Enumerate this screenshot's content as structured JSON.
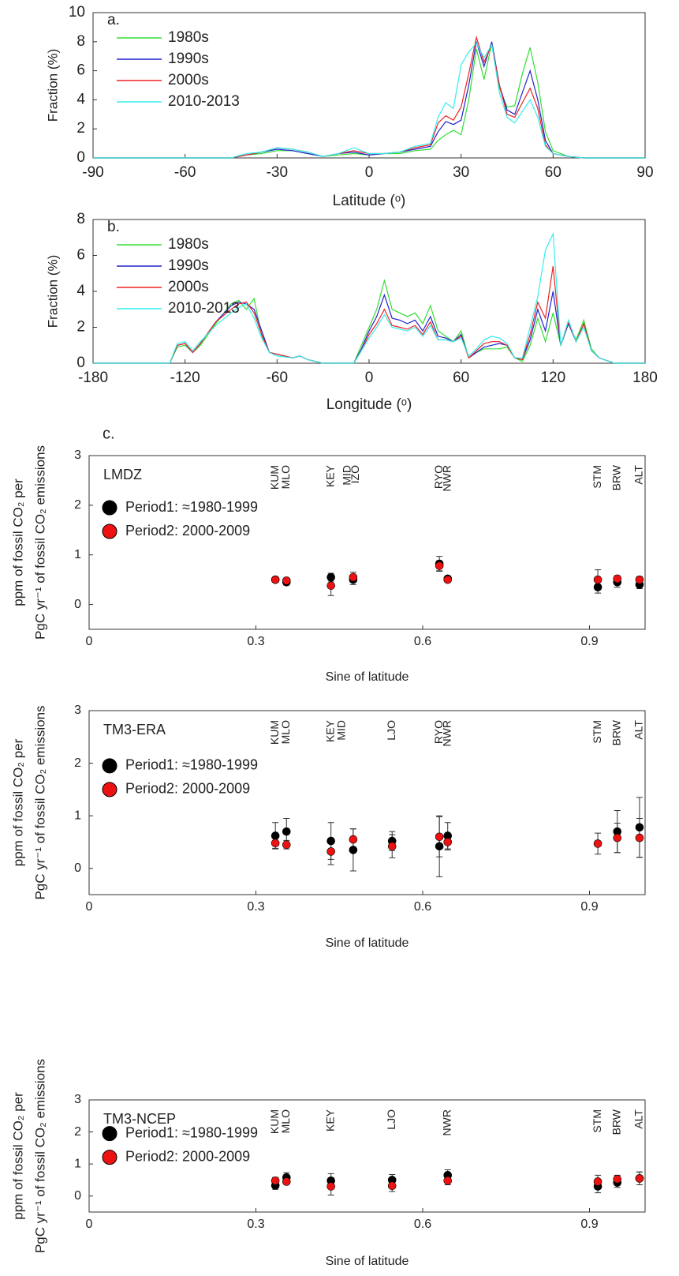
{
  "chart_data": [
    {
      "type": "line",
      "panel_label": "a.",
      "xlabel": "Latitude (ᵒ)",
      "ylabel": "Fraction (%)",
      "xlim": [
        -90,
        90
      ],
      "ylim": [
        0,
        10
      ],
      "xticks": [
        -90,
        -60,
        -30,
        0,
        30,
        60,
        90
      ],
      "yticks": [
        0,
        2,
        4,
        6,
        8,
        10
      ],
      "x": [
        -90,
        -45,
        -40,
        -35,
        -30,
        -25,
        -20,
        -15,
        -10,
        -5,
        0,
        5,
        10,
        15,
        20,
        22.5,
        25,
        27.5,
        30,
        32.5,
        35,
        37.5,
        40,
        42.5,
        45,
        47.5,
        50,
        52.5,
        55,
        57.5,
        60,
        65,
        70,
        90
      ],
      "series": [
        {
          "name": "1980s",
          "color": "#33dd33",
          "values": [
            0,
            0,
            0.2,
            0.3,
            0.5,
            0.5,
            0.3,
            0.1,
            0.2,
            0.3,
            0.2,
            0.3,
            0.3,
            0.5,
            0.6,
            1.2,
            1.6,
            1.9,
            1.6,
            4.0,
            7.5,
            5.4,
            7.9,
            4.8,
            3.5,
            3.6,
            5.8,
            7.6,
            5.2,
            1.8,
            0.5,
            0.1,
            0,
            0
          ]
        },
        {
          "name": "1990s",
          "color": "#2222cc",
          "values": [
            0,
            0,
            0.2,
            0.4,
            0.6,
            0.5,
            0.3,
            0.1,
            0.3,
            0.4,
            0.2,
            0.3,
            0.4,
            0.6,
            0.8,
            1.8,
            2.5,
            2.3,
            2.6,
            5.0,
            8.0,
            6.3,
            8.0,
            5.0,
            3.3,
            3.0,
            4.5,
            6.0,
            4.0,
            1.2,
            0.3,
            0.1,
            0,
            0
          ]
        },
        {
          "name": "2000s",
          "color": "#ee2222",
          "values": [
            0,
            0,
            0.2,
            0.4,
            0.7,
            0.6,
            0.4,
            0.1,
            0.3,
            0.5,
            0.3,
            0.3,
            0.4,
            0.7,
            0.9,
            2.4,
            2.9,
            2.6,
            3.5,
            5.8,
            8.3,
            6.6,
            7.8,
            5.0,
            3.0,
            2.8,
            3.8,
            4.8,
            3.4,
            0.9,
            0.3,
            0.1,
            0,
            0
          ]
        },
        {
          "name": "2010-2013",
          "color": "#33eeee",
          "values": [
            0,
            0,
            0.3,
            0.4,
            0.7,
            0.6,
            0.4,
            0.1,
            0.3,
            0.7,
            0.3,
            0.3,
            0.4,
            0.8,
            1.0,
            2.8,
            3.8,
            3.4,
            6.4,
            7.3,
            7.9,
            6.9,
            7.8,
            4.5,
            2.8,
            2.4,
            3.2,
            4.0,
            2.8,
            0.8,
            0.3,
            0.1,
            0,
            0
          ]
        }
      ]
    },
    {
      "type": "line",
      "panel_label": "b.",
      "xlabel": "Longitude (ᵒ)",
      "ylabel": "Fraction (%)",
      "xlim": [
        -180,
        180
      ],
      "ylim": [
        0,
        8
      ],
      "xticks": [
        -180,
        -120,
        -60,
        0,
        60,
        120,
        180
      ],
      "yticks": [
        0,
        2,
        4,
        6,
        8
      ],
      "x": [
        -180,
        -130,
        -125,
        -120,
        -115,
        -110,
        -100,
        -90,
        -85,
        -80,
        -75,
        -70,
        -65,
        -60,
        -50,
        -45,
        -40,
        -30,
        -10,
        -5,
        0,
        5,
        10,
        15,
        20,
        25,
        30,
        35,
        40,
        45,
        50,
        55,
        60,
        65,
        70,
        75,
        80,
        85,
        90,
        95,
        100,
        105,
        110,
        115,
        120,
        125,
        130,
        135,
        140,
        145,
        150,
        160,
        180
      ],
      "series": [
        {
          "name": "1980s",
          "color": "#33dd33",
          "values": [
            0,
            0,
            0.9,
            1.0,
            0.6,
            1.0,
            2.2,
            3.3,
            3.5,
            3.0,
            3.6,
            1.5,
            0.6,
            0.5,
            0.3,
            0.4,
            0.2,
            0,
            0,
            1.0,
            2.0,
            3.0,
            4.6,
            3.0,
            2.8,
            2.6,
            2.8,
            2.2,
            3.2,
            1.8,
            1.5,
            1.2,
            1.8,
            0.3,
            0.6,
            0.8,
            0.8,
            0.8,
            0.9,
            0.3,
            0.1,
            1.0,
            2.5,
            1.2,
            2.8,
            1.0,
            2.2,
            1.3,
            2.4,
            0.8,
            0.3,
            0,
            0
          ]
        },
        {
          "name": "1990s",
          "color": "#2222cc",
          "values": [
            0,
            0,
            1.0,
            1.1,
            0.6,
            1.1,
            2.3,
            3.2,
            3.4,
            3.3,
            3.0,
            1.8,
            0.6,
            0.5,
            0.3,
            0.4,
            0.2,
            0,
            0,
            0.8,
            1.8,
            2.6,
            3.8,
            2.5,
            2.4,
            2.2,
            2.4,
            1.8,
            2.6,
            1.5,
            1.4,
            1.2,
            1.6,
            0.3,
            0.6,
            0.9,
            1.0,
            1.1,
            1.0,
            0.3,
            0.2,
            1.3,
            3.0,
            1.8,
            4.0,
            1.0,
            2.2,
            1.2,
            2.2,
            0.7,
            0.3,
            0,
            0
          ]
        },
        {
          "name": "2000s",
          "color": "#ee2222",
          "values": [
            0,
            0,
            1.0,
            1.1,
            0.6,
            1.1,
            2.3,
            3.0,
            3.3,
            3.4,
            2.8,
            1.6,
            0.6,
            0.5,
            0.3,
            0.4,
            0.2,
            0,
            0,
            0.7,
            1.6,
            2.2,
            3.0,
            2.1,
            2.0,
            1.9,
            2.1,
            1.6,
            2.3,
            1.3,
            1.3,
            1.2,
            1.5,
            0.3,
            0.7,
            1.1,
            1.2,
            1.2,
            1.0,
            0.3,
            0.2,
            1.6,
            3.4,
            2.5,
            5.4,
            1.0,
            2.3,
            1.2,
            2.2,
            0.7,
            0.3,
            0,
            0
          ]
        },
        {
          "name": "2010-2013",
          "color": "#33eeee",
          "values": [
            0,
            0,
            1.1,
            1.2,
            0.7,
            1.2,
            2.1,
            2.8,
            3.1,
            3.3,
            2.5,
            1.4,
            0.6,
            0.4,
            0.3,
            0.4,
            0.2,
            0,
            0,
            0.7,
            1.4,
            2.0,
            2.7,
            2.0,
            1.9,
            1.8,
            2.0,
            1.5,
            2.1,
            1.3,
            1.3,
            1.2,
            1.4,
            0.4,
            0.8,
            1.3,
            1.5,
            1.4,
            1.1,
            0.3,
            0.3,
            2.0,
            3.7,
            6.3,
            7.2,
            1.0,
            2.4,
            1.2,
            2.0,
            0.7,
            0.3,
            0,
            0
          ]
        }
      ]
    },
    {
      "type": "scatter",
      "panel_label": "c.",
      "model": "LMDZ",
      "xlabel": "Sine of latitude",
      "ylabel": [
        "ppm of fossil CO₂ per",
        "PgC yr⁻¹ of fossil CO₂ emissions"
      ],
      "xlim": [
        0,
        1
      ],
      "ylim": [
        -0.5,
        3
      ],
      "xticks": [
        0,
        0.3,
        0.6,
        0.9
      ],
      "yticks": [
        0,
        1,
        2,
        3
      ],
      "stations": [
        {
          "label": "KUM",
          "x": 0.335
        },
        {
          "label": "MLO",
          "x": 0.355
        },
        {
          "label": "KEY",
          "x": 0.435
        },
        {
          "label": "MID",
          "x": 0.465
        },
        {
          "label": "IZO",
          "x": 0.48
        },
        {
          "label": "RYO",
          "x": 0.63
        },
        {
          "label": "NWR",
          "x": 0.645
        },
        {
          "label": "STM",
          "x": 0.915
        },
        {
          "label": "BRW",
          "x": 0.95
        },
        {
          "label": "ALT",
          "x": 0.99
        }
      ],
      "series": [
        {
          "name": "Period1: ≈1980-1999",
          "color": "#000000",
          "x": [
            0.335,
            0.355,
            0.435,
            0.475,
            0.63,
            0.645,
            0.915,
            0.95,
            0.99
          ],
          "values": [
            0.5,
            0.45,
            0.55,
            0.5,
            0.82,
            0.52,
            0.35,
            0.45,
            0.4
          ],
          "errors": [
            0.05,
            0.06,
            0.08,
            0.1,
            0.15,
            0.05,
            0.12,
            0.1,
            0.08
          ]
        },
        {
          "name": "Period2: 2000-2009",
          "color": "#ee1111",
          "x": [
            0.335,
            0.355,
            0.435,
            0.475,
            0.63,
            0.645,
            0.915,
            0.95,
            0.99
          ],
          "values": [
            0.5,
            0.48,
            0.38,
            0.55,
            0.78,
            0.5,
            0.5,
            0.52,
            0.5
          ],
          "errors": [
            0.05,
            0.05,
            0.2,
            0.1,
            0.1,
            0.05,
            0.2,
            0.06,
            0.06
          ]
        }
      ]
    },
    {
      "type": "scatter",
      "model": "TM3-ERA",
      "xlabel": "Sine of latitude",
      "ylabel": [
        "ppm of fossil CO₂ per",
        "PgC yr⁻¹ of fossil CO₂ emissions"
      ],
      "xlim": [
        0,
        1
      ],
      "ylim": [
        -0.5,
        3
      ],
      "xticks": [
        0,
        0.3,
        0.6,
        0.9
      ],
      "yticks": [
        0,
        1,
        2,
        3
      ],
      "stations": [
        {
          "label": "KUM",
          "x": 0.335
        },
        {
          "label": "MLO",
          "x": 0.355
        },
        {
          "label": "KEY",
          "x": 0.435
        },
        {
          "label": "MID",
          "x": 0.455
        },
        {
          "label": "LJO",
          "x": 0.545
        },
        {
          "label": "RYO",
          "x": 0.63
        },
        {
          "label": "NWR",
          "x": 0.645
        },
        {
          "label": "STM",
          "x": 0.915
        },
        {
          "label": "BRW",
          "x": 0.95
        },
        {
          "label": "ALT",
          "x": 0.99
        }
      ],
      "series": [
        {
          "name": "Period1: ≈1980-1999",
          "color": "#000000",
          "x": [
            0.335,
            0.355,
            0.435,
            0.475,
            0.545,
            0.63,
            0.645,
            0.95,
            0.99
          ],
          "values": [
            0.62,
            0.7,
            0.52,
            0.35,
            0.52,
            0.42,
            0.62,
            0.7,
            0.78
          ],
          "errors": [
            0.25,
            0.25,
            0.35,
            0.4,
            0.18,
            0.58,
            0.25,
            0.4,
            0.57
          ]
        },
        {
          "name": "Period2: 2000-2009",
          "color": "#ee1111",
          "x": [
            0.335,
            0.355,
            0.435,
            0.475,
            0.545,
            0.63,
            0.645,
            0.915,
            0.95,
            0.99
          ],
          "values": [
            0.48,
            0.45,
            0.32,
            0.55,
            0.42,
            0.6,
            0.5,
            0.47,
            0.58,
            0.58
          ],
          "errors": [
            0.1,
            0.08,
            0.25,
            0.2,
            0.22,
            0.38,
            0.15,
            0.2,
            0.28,
            0.37
          ]
        }
      ]
    },
    {
      "type": "scatter",
      "model": "TM3-NCEP",
      "xlabel": "Sine of latitude",
      "ylabel": [
        "ppm of fossil CO₂ per",
        "PgC yr⁻¹ of fossil CO₂ emissions"
      ],
      "xlim": [
        0,
        1
      ],
      "ylim": [
        -0.5,
        3
      ],
      "xticks": [
        0,
        0.3,
        0.6,
        0.9
      ],
      "yticks": [
        0,
        1,
        2,
        3
      ],
      "stations": [
        {
          "label": "KUM",
          "x": 0.335
        },
        {
          "label": "MLO",
          "x": 0.355
        },
        {
          "label": "KEY",
          "x": 0.435
        },
        {
          "label": "LJO",
          "x": 0.545
        },
        {
          "label": "NWR",
          "x": 0.645
        },
        {
          "label": "STM",
          "x": 0.915
        },
        {
          "label": "BRW",
          "x": 0.95
        },
        {
          "label": "ALT",
          "x": 0.99
        }
      ],
      "series": [
        {
          "name": "Period1: ≈1980-1999",
          "color": "#000000",
          "x": [
            0.335,
            0.355,
            0.435,
            0.545,
            0.645,
            0.915,
            0.95,
            0.99
          ],
          "values": [
            0.33,
            0.58,
            0.48,
            0.5,
            0.65,
            0.3,
            0.42,
            0.55
          ],
          "errors": [
            0.12,
            0.15,
            0.22,
            0.17,
            0.17,
            0.2,
            0.15,
            0.2
          ]
        },
        {
          "name": "Period2: 2000-2009",
          "color": "#ee1111",
          "x": [
            0.335,
            0.355,
            0.435,
            0.545,
            0.645,
            0.915,
            0.95,
            0.99
          ],
          "values": [
            0.48,
            0.45,
            0.3,
            0.32,
            0.48,
            0.45,
            0.53,
            0.55
          ],
          "errors": [
            0.1,
            0.08,
            0.27,
            0.18,
            0.13,
            0.2,
            0.12,
            0.2
          ]
        }
      ]
    }
  ]
}
